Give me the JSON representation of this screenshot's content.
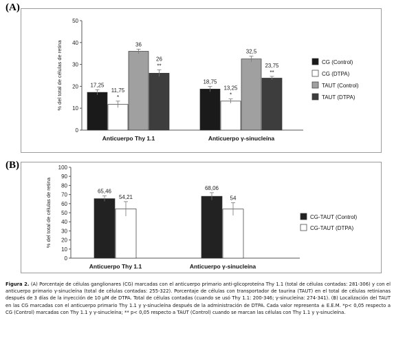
{
  "panels": [
    {
      "letter": "(A)",
      "chart_data": {
        "type": "bar",
        "ylabel": "% del total de células de retina",
        "ylim": [
          0,
          50
        ],
        "yticks": [
          0,
          10,
          20,
          30,
          40,
          50
        ],
        "grid": false,
        "legend_position": "right",
        "categories": [
          "Anticuerpo Thy 1.1",
          "Anticuerpo γ-sinucleína"
        ],
        "series": [
          {
            "name": "CG (Control)",
            "color": "#1a1a1a",
            "values": [
              17.25,
              18.75
            ],
            "labels": [
              "17,25",
              "18,75"
            ],
            "errors": [
              1.2,
              1.2
            ],
            "marks": [
              "",
              ""
            ]
          },
          {
            "name": "CG (DTPA)",
            "color": "#ffffff",
            "values": [
              11.75,
              13.25
            ],
            "labels": [
              "11,75",
              "13,25"
            ],
            "errors": [
              1.5,
              1.0
            ],
            "marks": [
              "*",
              "*"
            ]
          },
          {
            "name": "TAUT (Control)",
            "color": "#a0a0a0",
            "values": [
              36,
              32.5
            ],
            "labels": [
              "36",
              "32,5"
            ],
            "errors": [
              1.0,
              1.3
            ],
            "marks": [
              "",
              ""
            ]
          },
          {
            "name": "TAUT (DTPA)",
            "color": "#3d3d3d",
            "values": [
              26,
              23.75
            ],
            "labels": [
              "26",
              "23,75"
            ],
            "errors": [
              1.5,
              0.8
            ],
            "marks": [
              "**",
              "**"
            ]
          }
        ]
      }
    },
    {
      "letter": "(B)",
      "chart_data": {
        "type": "bar",
        "ylabel": "% del total de células de retina",
        "ylim": [
          0,
          100
        ],
        "yticks": [
          0,
          10,
          20,
          30,
          40,
          50,
          60,
          70,
          80,
          90,
          100
        ],
        "grid": false,
        "legend_position": "right",
        "categories": [
          "Anticuerpo Thy 1.1",
          "Anticuerpo γ-sinucleína"
        ],
        "series": [
          {
            "name": "CG-TAUT (Control)",
            "color": "#222222",
            "values": [
              65.46,
              68.06
            ],
            "labels": [
              "65,46",
              "68,06"
            ],
            "errors": [
              3.0,
              4.0
            ],
            "marks": [
              "",
              ""
            ]
          },
          {
            "name": "CG-TAUT (DTPA)",
            "color": "#ffffff",
            "values": [
              54.21,
              54
            ],
            "labels": [
              "54,21",
              "54"
            ],
            "errors": [
              8.0,
              7.0
            ],
            "marks": [
              "",
              ""
            ]
          }
        ]
      }
    }
  ],
  "caption": {
    "bold": "Figura 2.",
    "text": "(A) Porcentaje de células ganglionares (CG) marcadas con el anticuerpo primario anti-glicoproteína Thy 1.1 (total de células contadas: 281-306) y con el anticuerpo primario γ-sinucleína (total de células contadas: 255-322). Porcentaje de células con transportador de taurina (TAUT) en el total de células retinianas después de 3 días de la inyección de 10 μM de DTPA. Total de células contadas (cuando se usó Thy 1.1: 200-346; γ-sinucleína: 274-341). (B) Localización del TAUT en las CG marcadas con el anticuerpo primario Thy 1.1 y γ-sinucleína después de la administración de DTPA. Cada valor representa ± E.E.M. *p< 0,05 respecto a CG (Control) marcadas con Thy 1.1 y γ-sinucleína; ** p< 0,05 respecto a TAUT (Control) cuando se marcan las células con Thy 1.1 y γ-sinucleína."
  }
}
